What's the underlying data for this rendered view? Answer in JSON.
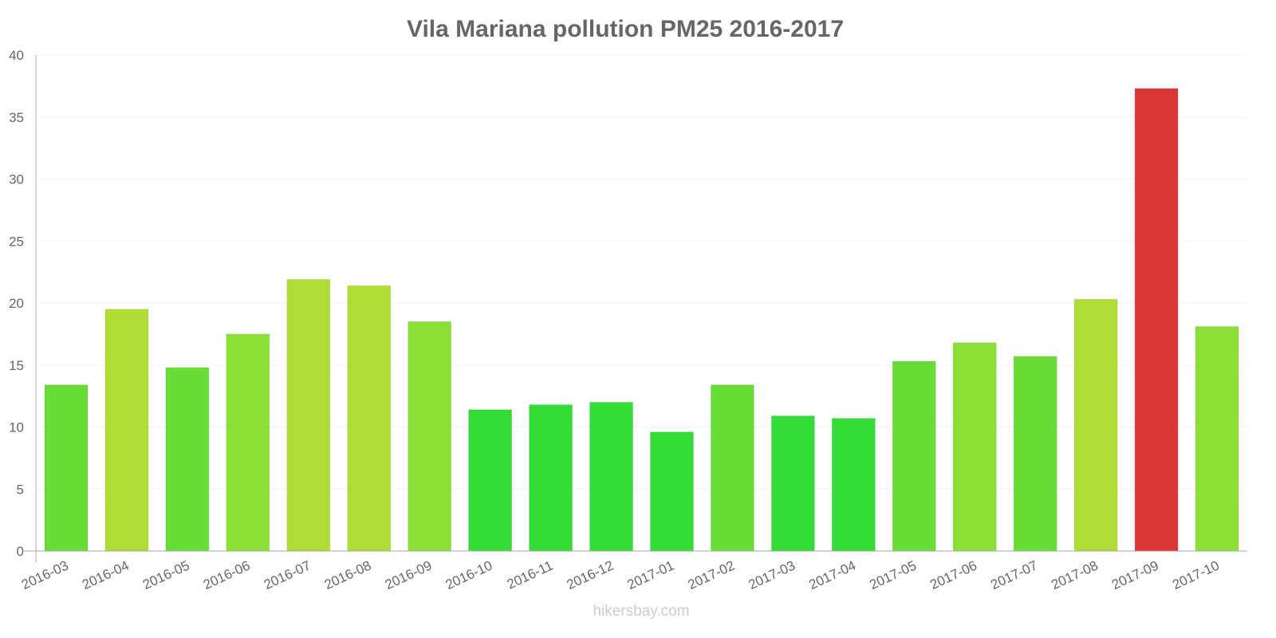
{
  "chart_data": {
    "type": "bar",
    "title": "Vila Mariana pollution PM25 2016-2017",
    "xlabel": "",
    "ylabel": "",
    "ylim": [
      0,
      40
    ],
    "yticks": [
      0,
      5,
      10,
      15,
      20,
      25,
      30,
      35,
      40
    ],
    "grid": true,
    "categories": [
      "2016-03",
      "2016-04",
      "2016-05",
      "2016-06",
      "2016-07",
      "2016-08",
      "2016-09",
      "2016-10",
      "2016-11",
      "2016-12",
      "2017-01",
      "2017-02",
      "2017-03",
      "2017-04",
      "2017-05",
      "2017-06",
      "2017-07",
      "2017-08",
      "2017-09",
      "2017-10"
    ],
    "values": [
      13.4,
      19.5,
      14.8,
      17.5,
      21.9,
      21.4,
      18.5,
      11.4,
      11.8,
      12.0,
      9.6,
      13.4,
      10.9,
      10.7,
      15.3,
      16.8,
      15.7,
      20.3,
      37.3,
      18.1
    ],
    "colors": [
      "#6adc38",
      "#aedd35",
      "#6adc38",
      "#8bdf37",
      "#aedd35",
      "#aedd35",
      "#8bdf37",
      "#34dc38",
      "#34dc38",
      "#34dc38",
      "#34dc38",
      "#6adc38",
      "#34dc38",
      "#34dc38",
      "#6adc38",
      "#8bdf37",
      "#6adc38",
      "#aedd35",
      "#dc3636",
      "#8bdf37"
    ]
  },
  "footer": "hikersbay.com"
}
